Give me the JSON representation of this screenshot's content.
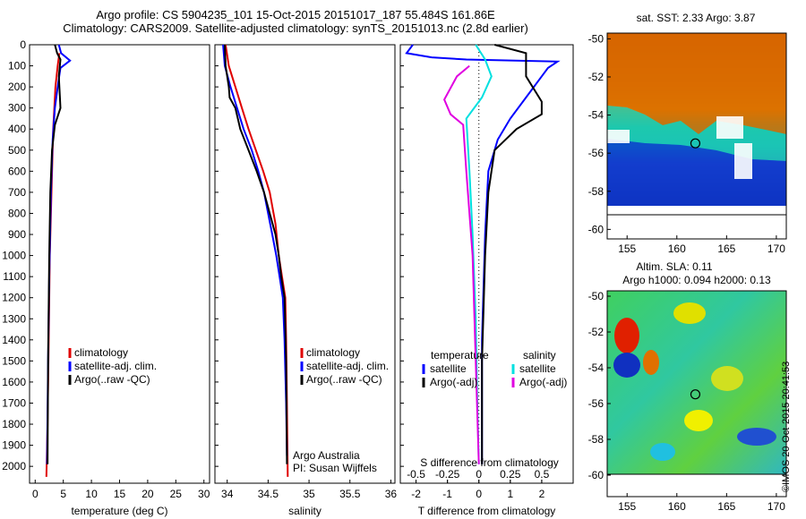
{
  "header": {
    "line1": "Argo profile: CS 5904235_101 15-Oct-2015 20151017_187 55.484S 161.86E",
    "line2": "Climatology: CARS2009. Satellite-adjusted climatology: synTS_20151013.nc (2.8d earlier)"
  },
  "credit": "©IMOS 20-Oct-2015 20:41:53",
  "colors": {
    "red": "#e00000",
    "blue": "#0000ff",
    "black": "#000000",
    "cyan": "#00e0e0",
    "magenta": "#e000e0"
  },
  "chart_data": [
    {
      "type": "line",
      "panel": "temperature",
      "xlabel": "temperature (deg C)",
      "ylabel": "",
      "xlim": [
        -1,
        31
      ],
      "ylim": [
        2080,
        0
      ],
      "xticks": [
        0,
        5,
        10,
        15,
        20,
        25,
        30
      ],
      "yticks": [
        0,
        100,
        200,
        300,
        400,
        500,
        600,
        700,
        800,
        900,
        1000,
        1100,
        1200,
        1300,
        1400,
        1500,
        1600,
        1700,
        1800,
        1900,
        2000
      ],
      "legend": [
        "climatology",
        "satellite-adj. clim.",
        "Argo(..raw -QC)"
      ],
      "series": [
        {
          "name": "climatology",
          "color": "red",
          "points": [
            [
              4.3,
              40
            ],
            [
              4.0,
              100
            ],
            [
              3.6,
              200
            ],
            [
              3.2,
              400
            ],
            [
              2.9,
              700
            ],
            [
              2.6,
              1000
            ],
            [
              2.4,
              1400
            ],
            [
              2.2,
              1800
            ],
            [
              2.0,
              2050
            ]
          ]
        },
        {
          "name": "satellite-adj. clim.",
          "color": "blue",
          "points": [
            [
              4.2,
              0
            ],
            [
              4.6,
              40
            ],
            [
              6.2,
              75
            ],
            [
              4.5,
              110
            ],
            [
              4.0,
              200
            ],
            [
              3.5,
              300
            ],
            [
              3.1,
              450
            ],
            [
              2.8,
              700
            ],
            [
              2.5,
              1100
            ],
            [
              2.3,
              1500
            ],
            [
              2.1,
              1990
            ]
          ]
        },
        {
          "name": "Argo(..raw -QC)",
          "color": "black",
          "points": [
            [
              3.5,
              0
            ],
            [
              3.9,
              40
            ],
            [
              4.5,
              70
            ],
            [
              4.2,
              150
            ],
            [
              4.5,
              300
            ],
            [
              3.5,
              380
            ],
            [
              3.0,
              500
            ],
            [
              2.7,
              700
            ],
            [
              2.5,
              1000
            ],
            [
              2.3,
              1500
            ],
            [
              2.2,
              1990
            ]
          ]
        }
      ]
    },
    {
      "type": "line",
      "panel": "salinity",
      "xlabel": "salinity",
      "ylabel": "",
      "xlim": [
        33.85,
        36.05
      ],
      "ylim": [
        2080,
        0
      ],
      "xticks": [
        34,
        34.5,
        35,
        35.5,
        36
      ],
      "legend": [
        "climatology",
        "satellite-adj. clim.",
        "Argo(..raw -QC)"
      ],
      "annotation": [
        "Argo Australia",
        "PI: Susan Wijffels"
      ],
      "series": [
        {
          "name": "climatology",
          "color": "red",
          "points": [
            [
              33.98,
              0
            ],
            [
              34.02,
              100
            ],
            [
              34.1,
              200
            ],
            [
              34.18,
              300
            ],
            [
              34.26,
              400
            ],
            [
              34.35,
              500
            ],
            [
              34.44,
              600
            ],
            [
              34.52,
              700
            ],
            [
              34.59,
              850
            ],
            [
              34.63,
              1000
            ],
            [
              34.67,
              1100
            ],
            [
              34.71,
              1200
            ],
            [
              34.72,
              1400
            ],
            [
              34.73,
              1700
            ],
            [
              34.74,
              2050
            ]
          ]
        },
        {
          "name": "satellite-adj. clim.",
          "color": "blue",
          "points": [
            [
              33.95,
              0
            ],
            [
              33.97,
              100
            ],
            [
              34.04,
              200
            ],
            [
              34.12,
              300
            ],
            [
              34.2,
              400
            ],
            [
              34.3,
              500
            ],
            [
              34.38,
              600
            ],
            [
              34.45,
              700
            ],
            [
              34.5,
              800
            ],
            [
              34.55,
              900
            ],
            [
              34.6,
              1000
            ],
            [
              34.64,
              1100
            ],
            [
              34.68,
              1200
            ],
            [
              34.7,
              1400
            ],
            [
              34.72,
              1700
            ],
            [
              34.73,
              1950
            ]
          ]
        },
        {
          "name": "Argo(..raw -QC)",
          "color": "black",
          "points": [
            [
              33.97,
              0
            ],
            [
              33.98,
              100
            ],
            [
              34.02,
              200
            ],
            [
              34.03,
              250
            ],
            [
              34.1,
              300
            ],
            [
              34.16,
              400
            ],
            [
              34.26,
              500
            ],
            [
              34.36,
              600
            ],
            [
              34.45,
              700
            ],
            [
              34.52,
              800
            ],
            [
              34.59,
              900
            ],
            [
              34.63,
              1000
            ],
            [
              34.66,
              1100
            ],
            [
              34.7,
              1200
            ],
            [
              34.72,
              1500
            ],
            [
              34.73,
              1990
            ]
          ]
        }
      ]
    },
    {
      "type": "line",
      "panel": "difference",
      "xlabel": "T difference from climatology",
      "xlabel2": "S difference from climatology",
      "xlim": [
        -2.5,
        3
      ],
      "ylim": [
        2080,
        0
      ],
      "xticks": [
        -2,
        -1,
        0,
        1,
        2
      ],
      "xticks2": [
        -0.5,
        -0.25,
        0,
        0.25,
        0.5
      ],
      "legend_temperature_title": "temperature",
      "legend_salinity_title": "salinity",
      "legend": [
        "satellite",
        "Argo(-adj)",
        "satellite",
        "Argo(-adj)"
      ],
      "series": [
        {
          "name": "satellite",
          "group": "temperature",
          "color": "blue",
          "points": [
            [
              -2.1,
              0
            ],
            [
              -2.3,
              40
            ],
            [
              -1.5,
              60
            ],
            [
              -0.4,
              70
            ],
            [
              2.5,
              80
            ],
            [
              2.2,
              110
            ],
            [
              2.0,
              150
            ],
            [
              1.5,
              250
            ],
            [
              1.0,
              350
            ],
            [
              0.6,
              450
            ],
            [
              0.3,
              600
            ],
            [
              0.2,
              900
            ],
            [
              0.1,
              1400
            ],
            [
              0.1,
              1990
            ]
          ]
        },
        {
          "name": "Argo(-adj)",
          "group": "temperature",
          "color": "black",
          "points": [
            [
              0.5,
              0
            ],
            [
              1.5,
              40
            ],
            [
              1.5,
              150
            ],
            [
              2.0,
              270
            ],
            [
              2.0,
              330
            ],
            [
              1.2,
              400
            ],
            [
              0.5,
              500
            ],
            [
              0.3,
              700
            ],
            [
              0.2,
              1000
            ],
            [
              0.1,
              1500
            ],
            [
              0.1,
              1990
            ]
          ]
        },
        {
          "name": "satellite",
          "group": "salinity",
          "color": "cyan",
          "points": [
            [
              -0.1,
              0
            ],
            [
              0.2,
              70
            ],
            [
              0.4,
              150
            ],
            [
              0.1,
              250
            ],
            [
              -0.4,
              350
            ],
            [
              -0.3,
              600
            ],
            [
              -0.2,
              900
            ],
            [
              -0.1,
              1300
            ],
            [
              -0.05,
              1700
            ],
            [
              0,
              1990
            ]
          ]
        },
        {
          "name": "Argo(-adj)",
          "group": "salinity",
          "color": "magenta",
          "points": [
            [
              -0.3,
              100
            ],
            [
              -0.7,
              150
            ],
            [
              -1.1,
              260
            ],
            [
              -0.9,
              330
            ],
            [
              -0.5,
              380
            ],
            [
              -0.4,
              600
            ],
            [
              -0.2,
              1000
            ],
            [
              -0.1,
              1500
            ],
            [
              0,
              1990
            ]
          ]
        }
      ]
    }
  ],
  "maps": [
    {
      "title": "sat. SST: 2.33 Argo: 3.87",
      "xticks": [
        155,
        160,
        165,
        170
      ],
      "yticks": [
        -50,
        -52,
        -54,
        -56,
        -58,
        -60
      ],
      "xlim": [
        153,
        171
      ],
      "ylim": [
        -60.5,
        -49.7
      ],
      "argo_lon": 161.86,
      "argo_lat": -55.484
    },
    {
      "title_line1": "Altim. SLA: 0.11",
      "title_line2": "Argo h1000: 0.094 h2000: 0.13",
      "xticks": [
        155,
        160,
        165,
        170
      ],
      "yticks": [
        -50,
        -52,
        -54,
        -56,
        -58,
        -60
      ],
      "xlim": [
        153,
        171
      ],
      "ylim": [
        -61.2,
        -49.7
      ],
      "argo_lon": 161.86,
      "argo_lat": -55.484
    }
  ]
}
